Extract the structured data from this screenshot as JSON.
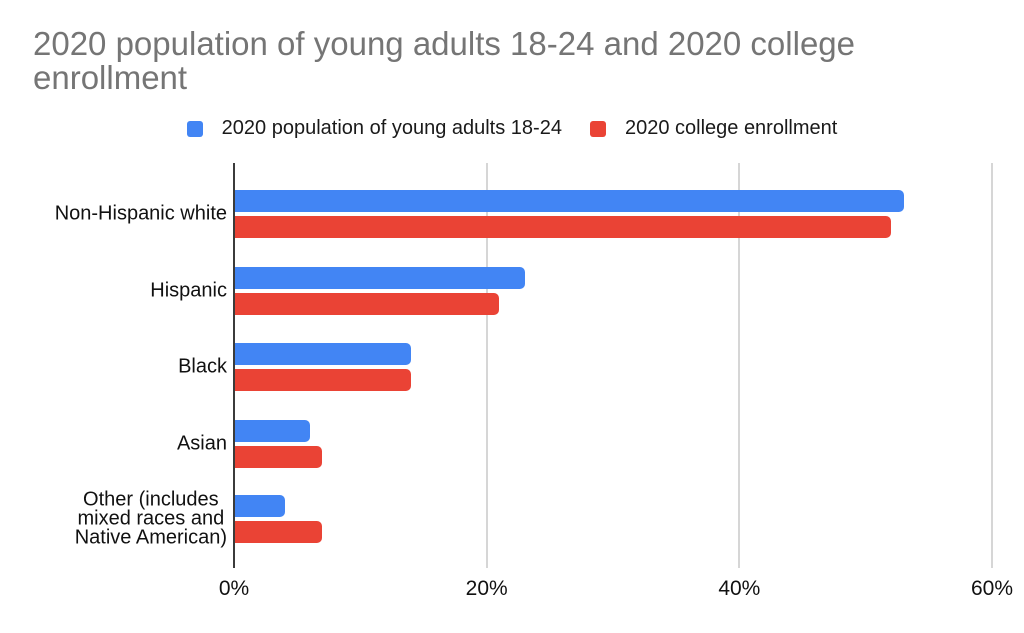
{
  "title": {
    "text": "2020 population of young adults 18-24 and 2020 college enrollment",
    "line1": "2020 population of young adults 18-24 and 2020 college",
    "line2": "enrollment"
  },
  "legend": {
    "items": [
      {
        "label": "2020 population of young adults 18-24",
        "color": "#4285f4"
      },
      {
        "label": "2020 college enrollment",
        "color": "#ea4335"
      }
    ]
  },
  "chart_data": {
    "type": "bar",
    "orientation": "horizontal",
    "title": "2020 population of young adults 18-24 and 2020 college enrollment",
    "categories": [
      "Non-Hispanic white",
      "Hispanic",
      "Black",
      "Asian",
      "Other (includes mixed races and Native American)"
    ],
    "category_display_lines": [
      [
        "Non-Hispanic white"
      ],
      [
        "Hispanic"
      ],
      [
        "Black"
      ],
      [
        "Asian"
      ],
      [
        "Other (includes",
        "mixed races and",
        "Native American)"
      ]
    ],
    "series": [
      {
        "name": "2020 population of young adults 18-24",
        "color": "#4285f4",
        "values": [
          53,
          23,
          14,
          6,
          4
        ]
      },
      {
        "name": "2020 college enrollment",
        "color": "#ea4335",
        "values": [
          52,
          21,
          14,
          7,
          7
        ]
      }
    ],
    "x_axis": {
      "min": 0,
      "max": 60,
      "unit": "%",
      "ticks": [
        0,
        20,
        40,
        60
      ],
      "tick_labels": [
        "0%",
        "20%",
        "40%",
        "60%"
      ]
    },
    "grid": true,
    "legend_position": "top",
    "xlabel": "",
    "ylabel": ""
  },
  "colors": {
    "title": "#757575",
    "text": "#111111",
    "axis_line": "#3b3b3b",
    "gridline": "#d6d6d6",
    "background": "#ffffff"
  }
}
